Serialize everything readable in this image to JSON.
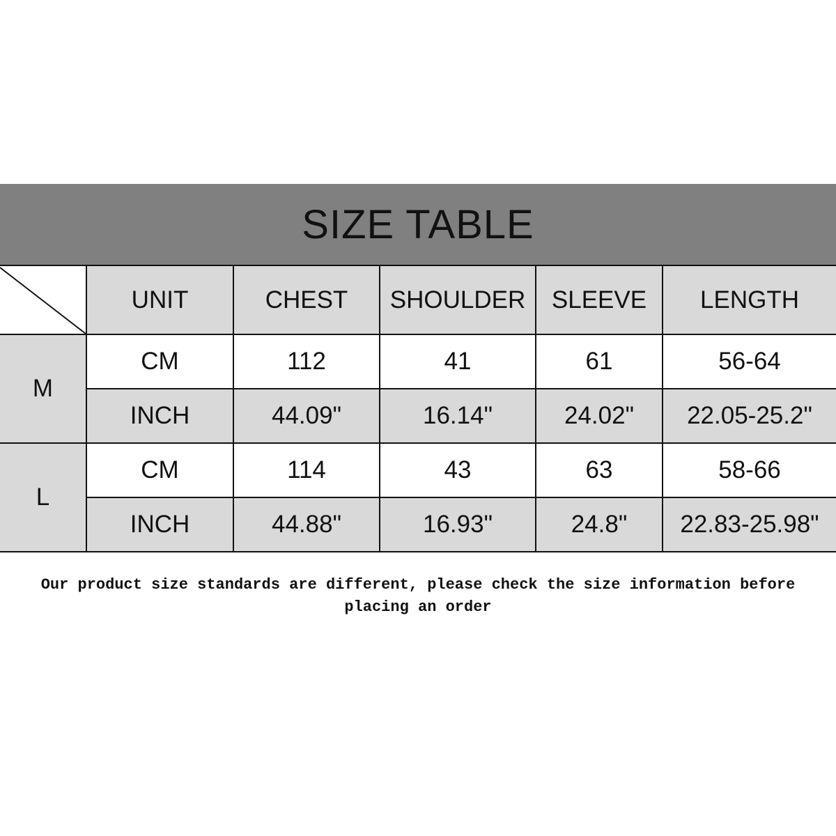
{
  "title": "SIZE TABLE",
  "table": {
    "headers": [
      "UNIT",
      "CHEST",
      "SHOULDER",
      "SLEEVE",
      "LENGTH"
    ],
    "sizes": [
      {
        "size": "M",
        "rows": [
          [
            "CM",
            "112",
            "41",
            "61",
            "56-64"
          ],
          [
            "INCH",
            "44.09\"",
            "16.14\"",
            "24.02\"",
            "22.05-25.2\""
          ]
        ]
      },
      {
        "size": "L",
        "rows": [
          [
            "CM",
            "114",
            "43",
            "63",
            "58-66"
          ],
          [
            "INCH",
            "44.88\"",
            "16.93\"",
            "24.8\"",
            "22.83-25.98\""
          ]
        ]
      }
    ]
  },
  "colors": {
    "title_band": "#808080",
    "shaded_cell": "#d9d9d9",
    "plain_cell": "#ffffff"
  },
  "note": "Our product size standards are different, please check the size information before placing an order"
}
